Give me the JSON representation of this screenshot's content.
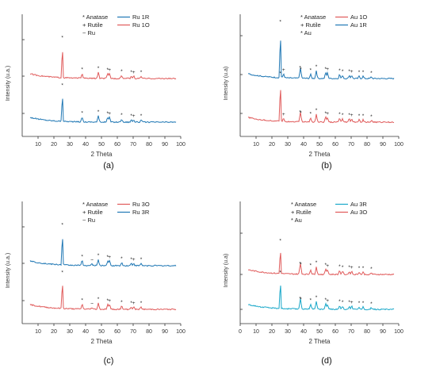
{
  "figure": {
    "colors": {
      "red": "#e05a5a",
      "blue": "#1f77b4",
      "cyan": "#17a7c9",
      "axis": "#333333"
    }
  },
  "chart_data": [
    {
      "type": "line",
      "caption": "(a)",
      "xlabel": "2 Theta",
      "ylabel": "Intensity (u.a.)",
      "xlim": [
        0,
        100
      ],
      "xticks": [
        10,
        20,
        30,
        40,
        50,
        60,
        70,
        80,
        90,
        100
      ],
      "legend": {
        "position": "top-right",
        "symbols": [
          "* Anatase",
          "+ Rutile",
          "~ Ru"
        ]
      },
      "series": [
        {
          "name": "Ru 1R",
          "color": "#1f77b4",
          "offset": 0,
          "peaks": [
            [
              25.3,
              40,
              "*"
            ],
            [
              37.8,
              6,
              "*"
            ],
            [
              48.0,
              8,
              "*"
            ],
            [
              53.9,
              6,
              "*"
            ],
            [
              55.1,
              6,
              "+"
            ],
            [
              62.7,
              4,
              "*"
            ],
            [
              68.8,
              3,
              "*"
            ],
            [
              70.3,
              3,
              "+"
            ],
            [
              75.0,
              3,
              "*"
            ]
          ]
        },
        {
          "name": "Ru 1O",
          "color": "#e05a5a",
          "offset": 55,
          "peaks": [
            [
              25.3,
              45,
              "*"
            ],
            [
              37.8,
              6,
              "*"
            ],
            [
              48.0,
              8,
              "*"
            ],
            [
              53.9,
              6,
              "*"
            ],
            [
              55.1,
              6,
              "+"
            ],
            [
              62.7,
              4,
              "*"
            ],
            [
              68.8,
              3,
              "*"
            ],
            [
              70.3,
              3,
              "+"
            ],
            [
              75.0,
              3,
              "*"
            ]
          ]
        }
      ]
    },
    {
      "type": "line",
      "caption": "(b)",
      "xlabel": "2 Theta",
      "ylabel": "Intensity (u.a)",
      "xlim": [
        0,
        100
      ],
      "xticks": [
        10,
        20,
        30,
        40,
        50,
        60,
        70,
        80,
        90,
        100
      ],
      "legend": {
        "position": "top-right",
        "symbols": [
          "* Anatase",
          "+ Rutile",
          "* Au"
        ]
      },
      "series": [
        {
          "name": "Au 1O",
          "color": "#e05a5a",
          "offset": 0,
          "peaks": [
            [
              25.3,
              55,
              "*"
            ],
            [
              27.4,
              4,
              "+"
            ],
            [
              37.8,
              7,
              "*"
            ],
            [
              38.2,
              6,
              "*"
            ],
            [
              44.4,
              5,
              "*"
            ],
            [
              48.0,
              10,
              "*"
            ],
            [
              53.9,
              6,
              "*"
            ],
            [
              55.1,
              6,
              "+"
            ],
            [
              62.7,
              5,
              "*"
            ],
            [
              64.6,
              4,
              "*"
            ],
            [
              68.8,
              4,
              "*"
            ],
            [
              70.3,
              4,
              "+"
            ],
            [
              75.0,
              3,
              "*"
            ],
            [
              77.5,
              3,
              "*"
            ],
            [
              82.7,
              2,
              "*"
            ]
          ]
        },
        {
          "name": "Au 1R",
          "color": "#1f77b4",
          "offset": 55,
          "peaks": [
            [
              25.3,
              65,
              "*"
            ],
            [
              27.4,
              5,
              "+"
            ],
            [
              37.8,
              8,
              "*"
            ],
            [
              38.2,
              6,
              "*"
            ],
            [
              44.4,
              5,
              "*"
            ],
            [
              48.0,
              10,
              "*"
            ],
            [
              53.9,
              7,
              "*"
            ],
            [
              55.1,
              7,
              "+"
            ],
            [
              62.7,
              5,
              "*"
            ],
            [
              64.6,
              4,
              "*"
            ],
            [
              68.8,
              4,
              "*"
            ],
            [
              70.3,
              4,
              "+"
            ],
            [
              75.0,
              3,
              "*"
            ],
            [
              77.5,
              3,
              "*"
            ],
            [
              82.7,
              2,
              "*"
            ]
          ]
        }
      ]
    },
    {
      "type": "line",
      "caption": "(c)",
      "xlabel": "2 Theta",
      "ylabel": "Intensity (u.a.)",
      "xlim": [
        0,
        100
      ],
      "xticks": [
        10,
        20,
        30,
        40,
        50,
        60,
        70,
        80,
        90,
        100
      ],
      "legend": {
        "position": "top-right",
        "symbols": [
          "* Anatase",
          "+ Rutile",
          "~ Ru"
        ]
      },
      "series": [
        {
          "name": "Ru 3O",
          "color": "#e05a5a",
          "offset": 0,
          "peaks": [
            [
              25.3,
              40,
              "*"
            ],
            [
              37.8,
              6,
              "*"
            ],
            [
              44.0,
              2,
              "~"
            ],
            [
              48.0,
              8,
              "*"
            ],
            [
              53.9,
              6,
              "*"
            ],
            [
              55.1,
              6,
              "+"
            ],
            [
              62.7,
              4,
              "*"
            ],
            [
              68.8,
              3,
              "*"
            ],
            [
              70.3,
              3,
              "+"
            ],
            [
              75.0,
              3,
              "*"
            ]
          ]
        },
        {
          "name": "Ru 3R",
          "color": "#1f77b4",
          "offset": 55,
          "peaks": [
            [
              25.3,
              45,
              "*"
            ],
            [
              37.8,
              6,
              "*"
            ],
            [
              44.0,
              2,
              "~"
            ],
            [
              48.0,
              8,
              "*"
            ],
            [
              53.9,
              6,
              "*"
            ],
            [
              55.1,
              6,
              "+"
            ],
            [
              62.7,
              4,
              "*"
            ],
            [
              68.8,
              3,
              "*"
            ],
            [
              70.3,
              3,
              "+"
            ],
            [
              75.0,
              3,
              "*"
            ]
          ]
        }
      ]
    },
    {
      "type": "line",
      "caption": "(d)",
      "xlabel": "2 Theta",
      "ylabel": "Intensity (u.a)",
      "xlim": [
        0,
        100
      ],
      "xticks": [
        0,
        10,
        20,
        30,
        40,
        50,
        60,
        70,
        80,
        90,
        100
      ],
      "legend": {
        "position": "top-right",
        "symbols": [
          "* Anatase",
          "+ Rutile",
          "* Au"
        ]
      },
      "series": [
        {
          "name": "Au 3R",
          "color": "#17a7c9",
          "offset": 0,
          "peaks": [
            [
              25.3,
              40,
              "*"
            ],
            [
              37.8,
              8,
              "*"
            ],
            [
              38.2,
              7,
              "*"
            ],
            [
              44.4,
              6,
              "*"
            ],
            [
              48.0,
              10,
              "*"
            ],
            [
              53.9,
              7,
              "*"
            ],
            [
              55.1,
              6,
              "+"
            ],
            [
              62.7,
              5,
              "*"
            ],
            [
              64.6,
              4,
              "*"
            ],
            [
              68.8,
              4,
              "*"
            ],
            [
              70.3,
              4,
              "+"
            ],
            [
              75.0,
              3,
              "*"
            ],
            [
              77.5,
              3,
              "*"
            ],
            [
              82.7,
              2,
              "*"
            ]
          ]
        },
        {
          "name": "Au 3O",
          "color": "#e05a5a",
          "offset": 44,
          "peaks": [
            [
              25.3,
              36,
              "*"
            ],
            [
              37.8,
              8,
              "*"
            ],
            [
              38.2,
              7,
              "*"
            ],
            [
              44.4,
              6,
              "*"
            ],
            [
              48.0,
              10,
              "*"
            ],
            [
              53.9,
              7,
              "*"
            ],
            [
              55.1,
              6,
              "+"
            ],
            [
              62.7,
              5,
              "*"
            ],
            [
              64.6,
              4,
              "*"
            ],
            [
              68.8,
              4,
              "*"
            ],
            [
              70.3,
              4,
              "+"
            ],
            [
              75.0,
              3,
              "*"
            ],
            [
              77.5,
              3,
              "*"
            ],
            [
              82.7,
              2,
              "*"
            ]
          ]
        }
      ]
    }
  ]
}
